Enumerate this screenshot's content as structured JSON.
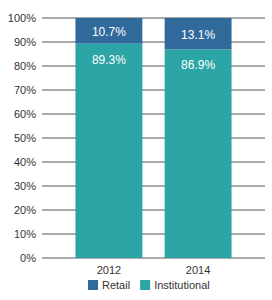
{
  "chart_data": {
    "type": "bar",
    "stacked": true,
    "data_labels": true,
    "grid": true,
    "legend": "bottom",
    "categories": [
      "2012",
      "2014"
    ],
    "series": [
      {
        "name": "Retail",
        "color": "#2f6a9b",
        "values": [
          10.7,
          13.1
        ],
        "value_labels": [
          "10.7%",
          "13.1%"
        ]
      },
      {
        "name": "Institutional",
        "color": "#2ba5a5",
        "values": [
          89.3,
          86.9
        ],
        "value_labels": [
          "89.3%",
          "86.9%"
        ]
      }
    ],
    "ylim": [
      0,
      100
    ],
    "yticks": [
      {
        "value": 0,
        "label": "0%"
      },
      {
        "value": 10,
        "label": "10%"
      },
      {
        "value": 20,
        "label": "20%"
      },
      {
        "value": 30,
        "label": "30%"
      },
      {
        "value": 40,
        "label": "40%"
      },
      {
        "value": 50,
        "label": "50%"
      },
      {
        "value": 60,
        "label": "60%"
      },
      {
        "value": 70,
        "label": "70%"
      },
      {
        "value": 80,
        "label": "80%"
      },
      {
        "value": 90,
        "label": "90%"
      },
      {
        "value": 100,
        "label": "100%"
      }
    ]
  }
}
